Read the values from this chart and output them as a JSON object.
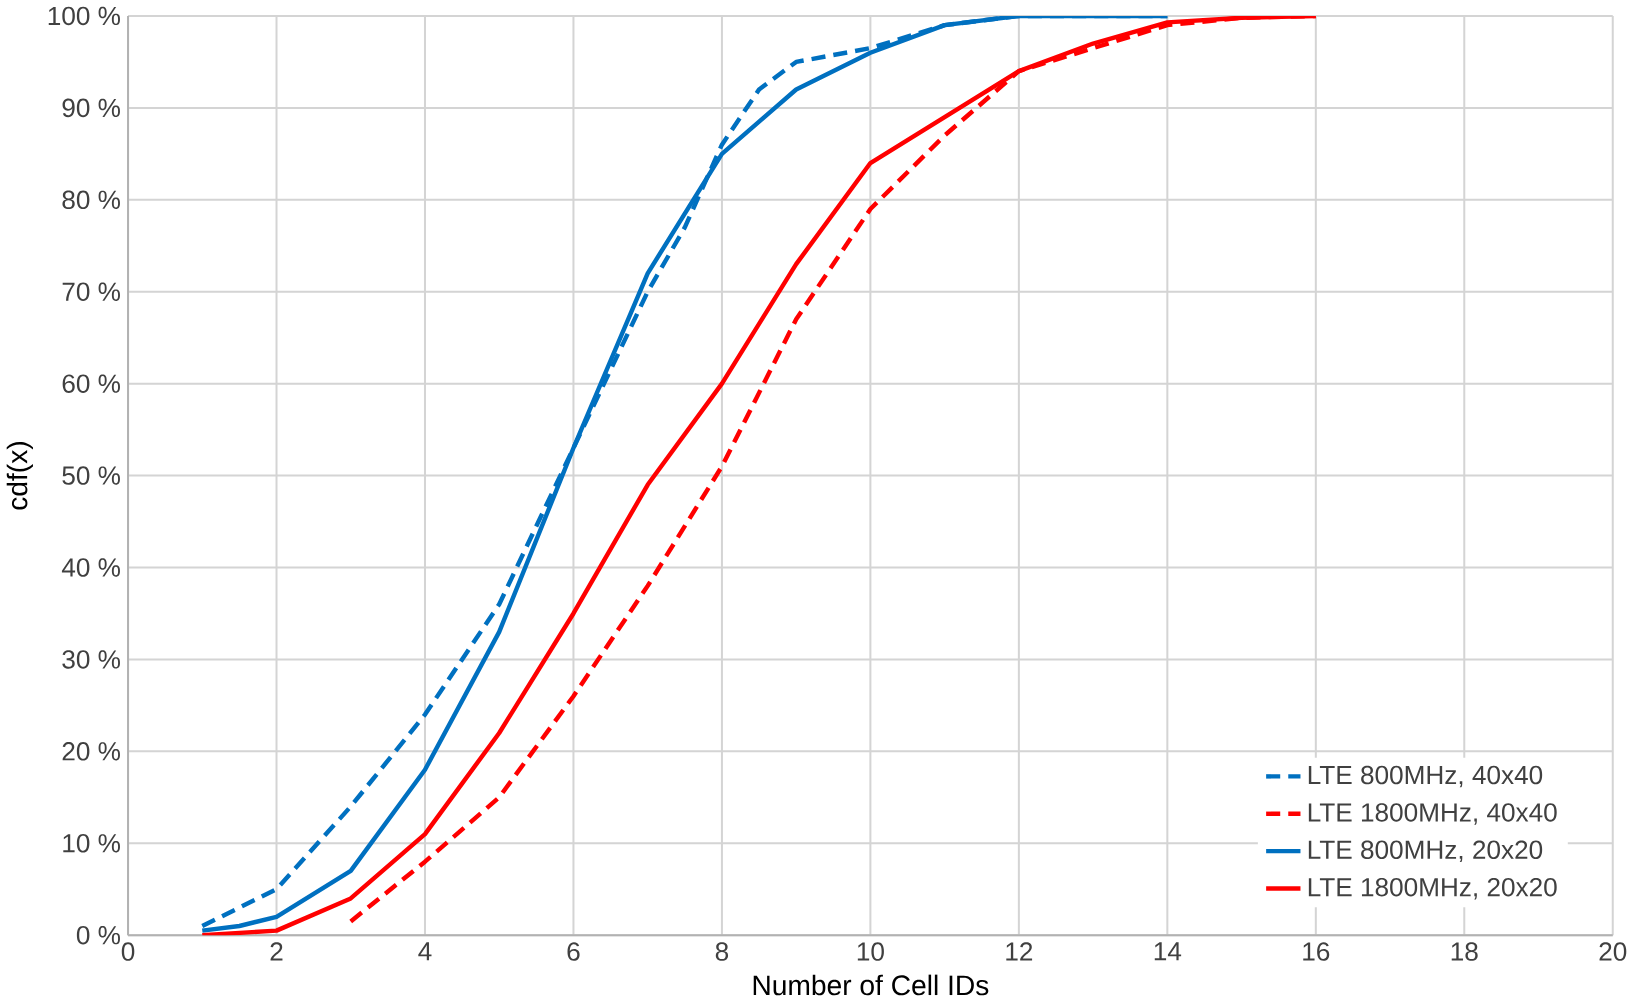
{
  "chart_data": {
    "type": "line",
    "xlabel": "Number of Cell IDs",
    "ylabel": "cdf(x)",
    "xlim": [
      0,
      20
    ],
    "xticks": [
      0,
      2,
      4,
      6,
      8,
      10,
      12,
      14,
      16,
      18,
      20
    ],
    "ylim": [
      0,
      100
    ],
    "yticks": [
      {
        "value": 0,
        "label": "0 %"
      },
      {
        "value": 10,
        "label": "10 %"
      },
      {
        "value": 20,
        "label": "20 %"
      },
      {
        "value": 30,
        "label": "30 %"
      },
      {
        "value": 40,
        "label": "40 %"
      },
      {
        "value": 50,
        "label": "50 %"
      },
      {
        "value": 60,
        "label": "60 %"
      },
      {
        "value": 70,
        "label": "70 %"
      },
      {
        "value": 80,
        "label": "80 %"
      },
      {
        "value": 90,
        "label": "90 %"
      },
      {
        "value": 100,
        "label": "100 %"
      }
    ],
    "grid": true,
    "legend": "bottom right",
    "marker": "none",
    "series": [
      {
        "name": "LTE 800MHz, 40x40",
        "color": "#0070c0",
        "line_style": "dashed",
        "x": [
          1,
          2,
          3,
          4,
          5,
          6,
          7,
          7.5,
          8,
          8.5,
          9,
          10,
          11,
          12,
          14
        ],
        "values": [
          1,
          5,
          14,
          24,
          36,
          53,
          70,
          77,
          86,
          92,
          95,
          96.5,
          99,
          100,
          100
        ]
      },
      {
        "name": "LTE 1800MHz, 40x40",
        "color": "#ff0000",
        "line_style": "dashed",
        "x": [
          3,
          4,
          5,
          6,
          7,
          8,
          9,
          10,
          11,
          12,
          13,
          14,
          15,
          16
        ],
        "values": [
          1.5,
          8,
          15,
          26,
          38,
          51,
          67,
          79,
          87,
          94,
          96.5,
          99,
          99.8,
          100
        ]
      },
      {
        "name": "LTE 800MHz, 20x20",
        "color": "#0070c0",
        "line_style": "solid",
        "x": [
          1,
          1.5,
          2,
          3,
          4,
          5,
          6,
          7,
          8,
          9,
          10,
          11,
          12,
          14
        ],
        "values": [
          0.5,
          1,
          2,
          7,
          18,
          33,
          53,
          72,
          85,
          92,
          96,
          99,
          100,
          100
        ]
      },
      {
        "name": "LTE 1800MHz, 20x20",
        "color": "#ff0000",
        "line_style": "solid",
        "x": [
          1,
          2,
          3,
          4,
          5,
          6,
          7,
          8,
          9,
          10,
          11,
          12,
          13,
          14,
          15,
          16
        ],
        "values": [
          0,
          0.5,
          4,
          11,
          22,
          35,
          49,
          60,
          73,
          84,
          89,
          94,
          97,
          99.3,
          99.8,
          100
        ]
      }
    ]
  }
}
